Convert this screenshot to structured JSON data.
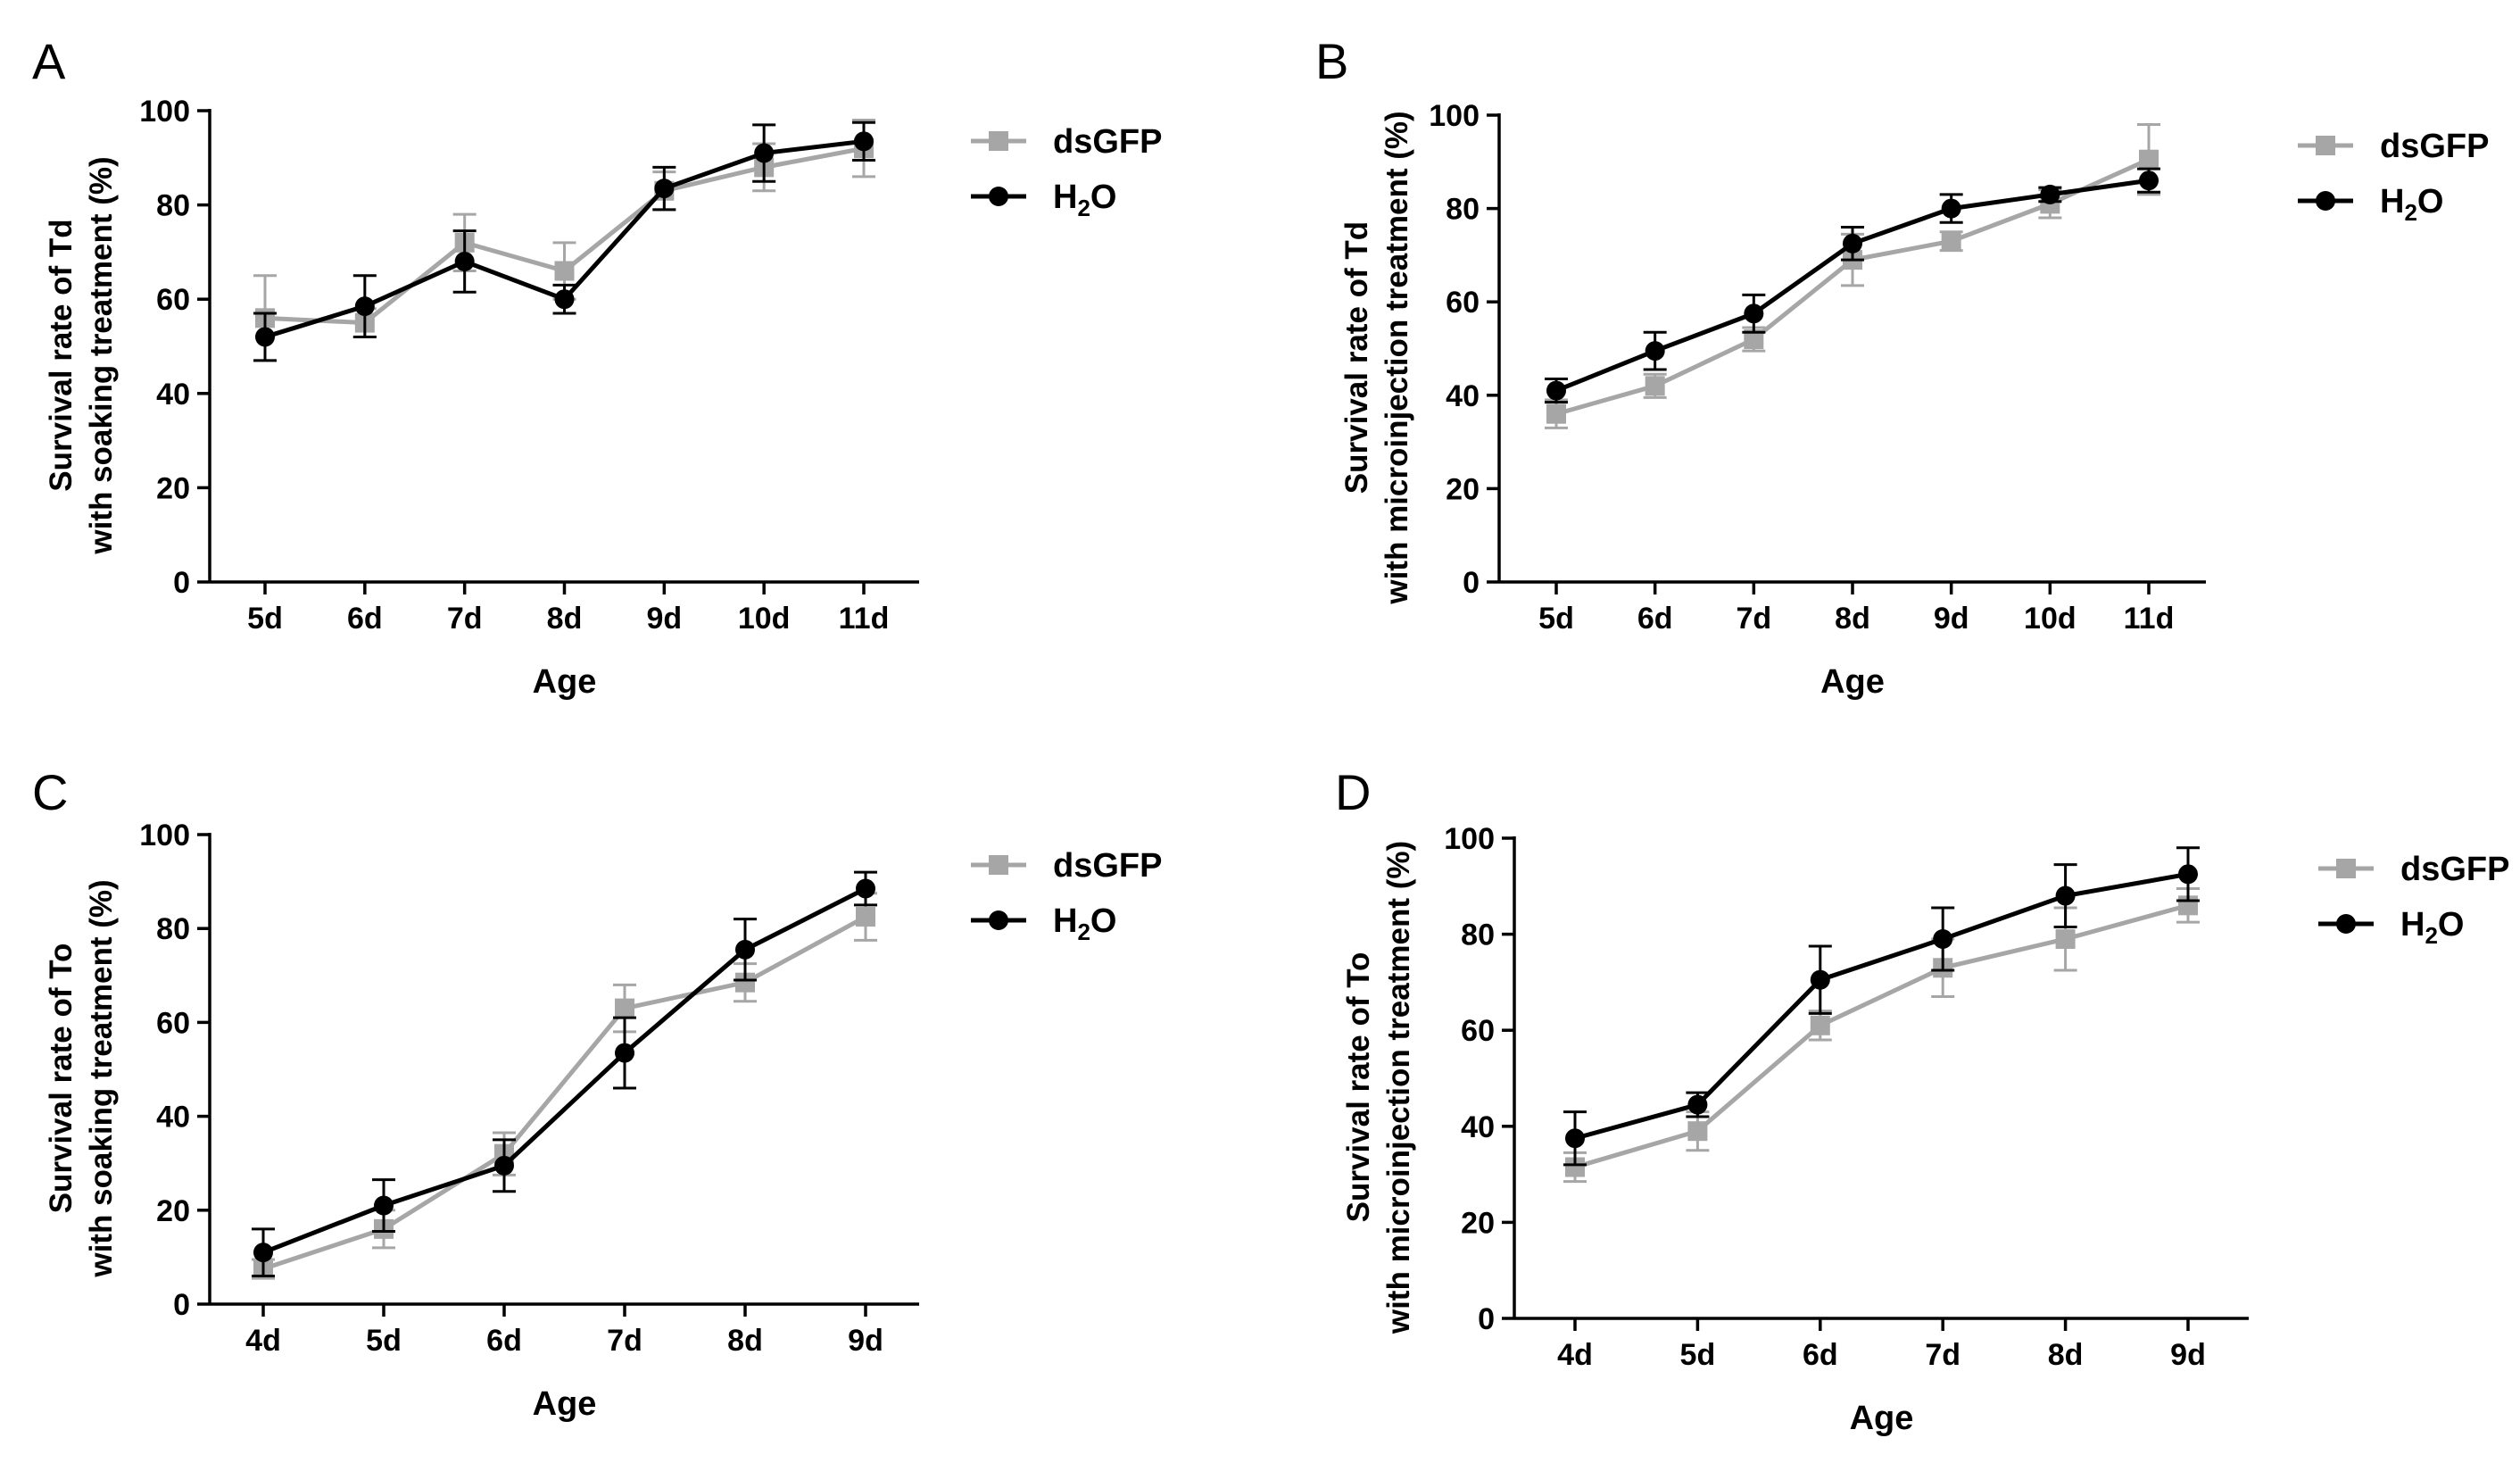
{
  "colors": {
    "dsGFP": "#a6a6a6",
    "H2O": "#000000"
  },
  "chart_data": [
    {
      "type": "line",
      "panel_label": "A",
      "ylabel_line1": "Survival rate of Td",
      "ylabel_line2": "with soaking treatment (%)",
      "xlabel": "Age",
      "ylim": [
        0,
        100
      ],
      "yticks": [
        "0",
        "20",
        "40",
        "60",
        "80",
        "100"
      ],
      "categories": [
        "5d",
        "6d",
        "7d",
        "8d",
        "9d",
        "10d",
        "11d"
      ],
      "series": [
        {
          "name": "dsGFP",
          "values": [
            56,
            55,
            72,
            66,
            83,
            88,
            92
          ],
          "err": [
            9,
            3,
            6,
            6,
            4,
            5,
            6
          ]
        },
        {
          "name": "H2O",
          "values": [
            52,
            58.5,
            68,
            60,
            83.5,
            91,
            93.5
          ],
          "err": [
            5,
            6.5,
            6.5,
            3,
            4.5,
            6,
            4
          ]
        }
      ],
      "legend": [
        {
          "name": "dsGFP",
          "text": "dsGFP"
        },
        {
          "name": "H2O",
          "text": "H",
          "sub": "2",
          "tail": "O"
        }
      ]
    },
    {
      "type": "line",
      "panel_label": "B",
      "ylabel_line1": "Survival rate of Td",
      "ylabel_line2": "with microinjection treatment (%)",
      "xlabel": "Age",
      "ylim": [
        0,
        100
      ],
      "yticks": [
        "0",
        "20",
        "40",
        "60",
        "80",
        "100"
      ],
      "categories": [
        "5d",
        "6d",
        "7d",
        "8d",
        "9d",
        "10d",
        "11d"
      ],
      "series": [
        {
          "name": "dsGFP",
          "values": [
            36,
            42,
            52,
            69,
            73,
            81,
            90.5
          ],
          "err": [
            3,
            2.5,
            2.5,
            5.5,
            2,
            3,
            7.5
          ]
        },
        {
          "name": "H2O",
          "values": [
            41,
            49.5,
            57.5,
            72.5,
            80,
            83,
            86
          ],
          "err": [
            2.5,
            4,
            4,
            3.5,
            3,
            1.5,
            2.5
          ]
        }
      ],
      "legend": [
        {
          "name": "dsGFP",
          "text": "dsGFP"
        },
        {
          "name": "H2O",
          "text": "H",
          "sub": "2",
          "tail": "O"
        }
      ]
    },
    {
      "type": "line",
      "panel_label": "C",
      "ylabel_line1": "Survival rate of To",
      "ylabel_line2": "with soaking treatment (%)",
      "xlabel": "Age",
      "ylim": [
        0,
        100
      ],
      "yticks": [
        "0",
        "20",
        "40",
        "60",
        "80",
        "100"
      ],
      "categories": [
        "4d",
        "5d",
        "6d",
        "7d",
        "8d",
        "9d"
      ],
      "series": [
        {
          "name": "dsGFP",
          "values": [
            7.5,
            16,
            32,
            63,
            68.5,
            82.5
          ],
          "err": [
            2,
            4,
            4.5,
            5,
            4,
            5
          ]
        },
        {
          "name": "H2O",
          "values": [
            11,
            21,
            29.5,
            53.5,
            75.5,
            88.5
          ],
          "err": [
            5,
            5.5,
            5.5,
            7.5,
            6.5,
            3.5
          ]
        }
      ],
      "legend": [
        {
          "name": "dsGFP",
          "text": "dsGFP"
        },
        {
          "name": "H2O",
          "text": "H",
          "sub": "2",
          "tail": "O"
        }
      ]
    },
    {
      "type": "line",
      "panel_label": "D",
      "ylabel_line1": "Survival rate of To",
      "ylabel_line2": "with microinjection treatment (%)",
      "xlabel": "Age",
      "ylim": [
        0,
        100
      ],
      "yticks": [
        "0",
        "20",
        "40",
        "60",
        "80",
        "100"
      ],
      "categories": [
        "4d",
        "5d",
        "6d",
        "7d",
        "8d",
        "9d"
      ],
      "series": [
        {
          "name": "dsGFP",
          "values": [
            31.5,
            39,
            61,
            73,
            79,
            86
          ],
          "err": [
            3,
            4,
            3,
            6,
            6.5,
            3.5
          ]
        },
        {
          "name": "H2O",
          "values": [
            37.5,
            44.5,
            70.5,
            79,
            88,
            92.5
          ],
          "err": [
            5.5,
            2.5,
            7,
            6.5,
            6.5,
            5.5
          ]
        }
      ],
      "legend": [
        {
          "name": "dsGFP",
          "text": "dsGFP"
        },
        {
          "name": "H2O",
          "text": "H",
          "sub": "2",
          "tail": "O"
        }
      ]
    }
  ]
}
